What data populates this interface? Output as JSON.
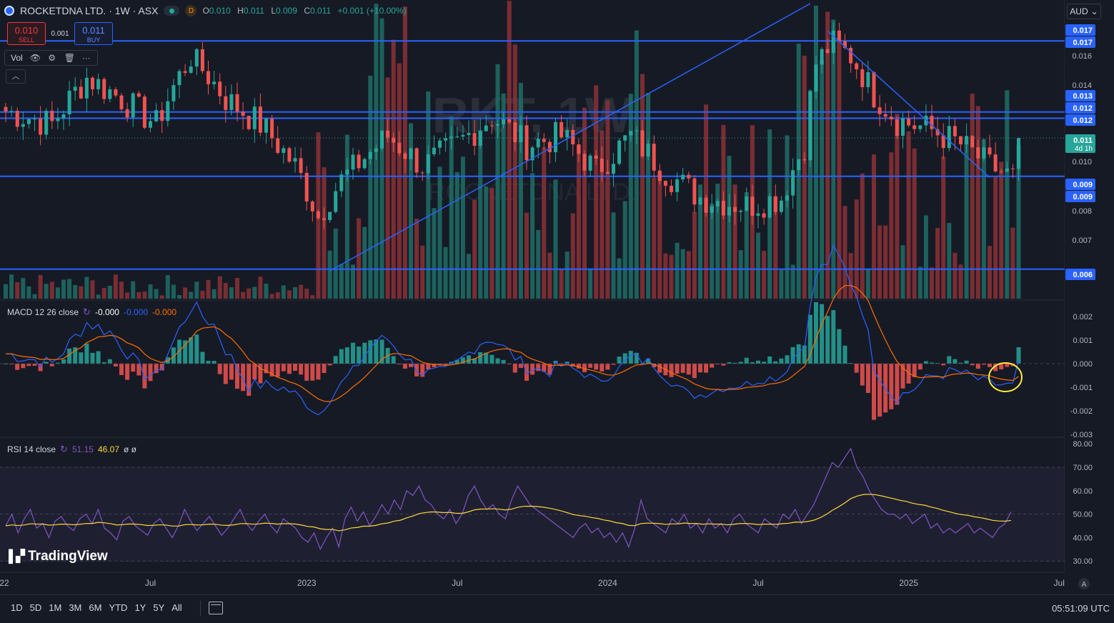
{
  "header": {
    "symbol": "ROCKETDNA LTD. · 1W · ASX",
    "badge": "D",
    "ohlc": [
      {
        "k": "O",
        "v": "0.010"
      },
      {
        "k": "H",
        "v": "0.011"
      },
      {
        "k": "L",
        "v": "0.009"
      },
      {
        "k": "C",
        "v": "0.011"
      }
    ],
    "change": "+0.001 (+10.00%)"
  },
  "trade": {
    "sell_price": "0.010",
    "sell_label": "SELL",
    "spread": "0.001",
    "buy_price": "0.011",
    "buy_label": "BUY"
  },
  "volume_legend": {
    "label": "Vol"
  },
  "currency": "AUD",
  "watermark": {
    "symbol": "RKT, 1W",
    "name": "ROCKETDNA LTD."
  },
  "macd_legend": {
    "title": "MACD 12 26 close",
    "v1": "-0.000",
    "v2": "-0.000",
    "v3": "-0.000"
  },
  "rsi_legend": {
    "title": "RSI 14 close",
    "v1": "51.15",
    "v2": "46.07",
    "v3": "ø ø"
  },
  "branding": "TradingView",
  "range_buttons": [
    "1D",
    "5D",
    "1M",
    "3M",
    "6M",
    "YTD",
    "1Y",
    "5Y",
    "All"
  ],
  "clock": "05:51:09 UTC",
  "colors": {
    "up": "#26a69a",
    "down": "#f05350",
    "line": "#2962ff",
    "macd": "#2962ff",
    "signal": "#ff6d00",
    "rsi": "#7e57c2",
    "rsi_ma": "#fdd835"
  },
  "chart_data": {
    "type": "candlestick",
    "price_axis_labels": [
      "0.016",
      "0.014",
      "0.010",
      "0.008",
      "0.007"
    ],
    "price_tags": [
      {
        "v": "0.017",
        "c": "#2962ff"
      },
      {
        "v": "0.017",
        "c": "#2962ff"
      },
      {
        "v": "0.013",
        "c": "#2962ff"
      },
      {
        "v": "0.012",
        "c": "#2962ff"
      },
      {
        "v": "0.012",
        "c": "#2962ff"
      },
      {
        "v": "0.011",
        "c": "#26a69a",
        "sub": "4d 1h"
      },
      {
        "v": "0.009",
        "c": "#2962ff"
      },
      {
        "v": "0.009",
        "c": "#2962ff"
      },
      {
        "v": "0.006",
        "c": "#2962ff"
      }
    ],
    "horizontal_levels": [
      0.01735,
      0.01245,
      0.0121,
      0.00935,
      0.00615
    ],
    "current_price": 0.0111,
    "macd_axis_labels": [
      "0.002",
      "0.001",
      "0.000",
      "-0.001",
      "-0.002",
      "-0.003"
    ],
    "rsi_axis_labels": [
      "80.00",
      "70.00",
      "60.00",
      "50.00",
      "40.00",
      "30.00"
    ],
    "time_axis_labels": [
      "22",
      "Jul",
      "2023",
      "Jul",
      "2024",
      "Jul",
      "2025",
      "Jul"
    ],
    "time_axis_label_weeks": [
      -1,
      25,
      52,
      78,
      104,
      130,
      156,
      182
    ],
    "rsi": [
      45,
      50,
      42,
      48,
      52,
      44,
      46,
      40,
      47,
      49,
      45,
      43,
      48,
      50,
      46,
      52,
      44,
      42,
      39,
      47,
      49,
      45,
      43,
      41,
      46,
      48,
      44,
      40,
      45,
      52,
      47,
      43,
      46,
      49,
      45,
      41,
      44,
      48,
      52,
      46,
      43,
      47,
      50,
      45,
      42,
      48,
      46,
      44,
      40,
      38,
      42,
      35,
      40,
      44,
      36,
      48,
      53,
      47,
      51,
      45,
      49,
      54,
      50,
      56,
      52,
      60,
      58,
      62,
      56,
      54,
      50,
      48,
      52,
      46,
      50,
      58,
      62,
      56,
      52,
      54,
      50,
      48,
      56,
      62,
      58,
      54,
      52,
      50,
      48,
      46,
      44,
      42,
      40,
      44,
      46,
      42,
      44,
      40,
      42,
      38,
      42,
      36,
      44,
      56,
      48,
      46,
      44,
      42,
      48,
      46,
      50,
      44,
      46,
      42,
      48,
      44,
      46,
      42,
      48,
      50,
      46,
      44,
      42,
      48,
      46,
      44,
      50,
      48,
      52,
      46,
      50,
      54,
      60,
      66,
      72,
      70,
      74,
      78,
      70,
      66,
      60,
      56,
      52,
      50,
      50,
      48,
      50,
      46,
      48,
      50,
      44,
      46,
      42,
      44,
      42,
      44,
      46,
      42,
      44,
      42,
      40,
      44,
      46,
      51
    ]
  }
}
